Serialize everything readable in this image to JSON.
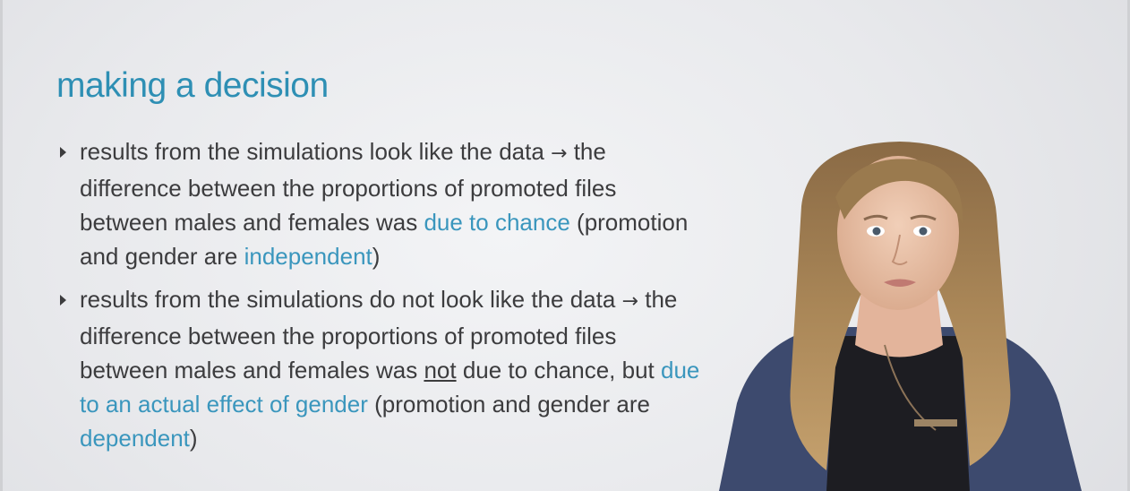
{
  "slide": {
    "title": "making a decision",
    "bullets": [
      {
        "t1": "results from the simulations look like the data",
        "arrow": "→",
        "t2": "the difference between the proportions of promoted files between males and females was",
        "h1": "due to chance",
        "t3": "(promotion and gender are",
        "h2": "independent",
        "t4": ")"
      },
      {
        "t1": "results from the simulations do not look like the data",
        "arrow": "→",
        "t2": "the difference between the proportions of promoted files between males and females was",
        "u1": "not",
        "t3": "due to chance, but",
        "h1": "due to an actual effect of gender",
        "t4": "(promotion and gender are",
        "h2": "dependent",
        "t5": ")"
      }
    ]
  },
  "colors": {
    "title": "#2e8fb4",
    "highlight": "#3a96bd",
    "body_text": "#3c3c3e"
  },
  "presenter": {
    "icon": "presenter-video-icon"
  }
}
